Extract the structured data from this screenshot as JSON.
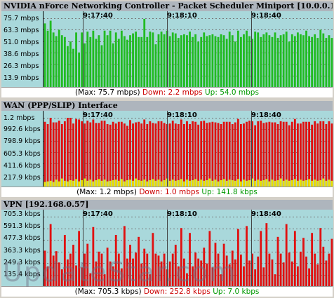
{
  "watermark": "UpdateStar.com",
  "colors": {
    "plot_bg": "#a9d8db",
    "download": "#e01010",
    "download_alt": "#22bb22",
    "upload": "#e8e000",
    "gridline": "#777777",
    "title_bg": "#aeb5bd"
  },
  "panels": [
    {
      "title": "NVIDIA nForce Networking Controller - Packet Scheduler Miniport [10.0.0.10]",
      "y_ticks": [
        "75.7 mbps",
        "63.3 mbps",
        "51.0 mbps",
        "38.6 mbps",
        "26.3 mbps",
        "13.9 mbps"
      ],
      "times": [
        "9:17:40",
        "9:18:10",
        "9:18:40"
      ],
      "status": {
        "max": "(Max: 75.7 mbps)",
        "down": "Down: 2.2 mbps",
        "up": "Up: 54.0 mbps"
      }
    },
    {
      "title": "WAN (PPP/SLIP) Interface",
      "y_ticks": [
        "1.2 mbps",
        "992.6 kbps",
        "798.9 kbps",
        "605.3 kbps",
        "411.6 kbps",
        "217.9 kbps"
      ],
      "times": [
        "9:17:40",
        "9:18:10",
        "9:18:40"
      ],
      "status": {
        "max": "(Max: 1.2 mbps)",
        "down": "Down: 1.0 mbps",
        "up": "Up: 141.8 kbps"
      }
    },
    {
      "title": "VPN [192.168.0.57]",
      "y_ticks": [
        "705.3 kbps",
        "591.3 kbps",
        "477.3 kbps",
        "363.3 kbps",
        "249.3 kbps",
        "135.4 kbps"
      ],
      "times": [
        "9:17:40",
        "9:18:10",
        "9:18:40"
      ],
      "status": {
        "max": "(Max: 705.3 kbps)",
        "down": "Down: 252.8 kbps",
        "up": "Up: 7.0 kbps"
      }
    }
  ],
  "chart_data": [
    {
      "type": "bar",
      "title": "NVIDIA nForce Networking Controller - Packet Scheduler Miniport [10.0.0.10]",
      "ylim": [
        0,
        75.7
      ],
      "unit": "mbps",
      "series": [
        {
          "values": [
            70,
            62,
            73,
            60,
            56,
            63,
            57,
            55,
            45,
            50,
            42,
            60,
            38,
            60,
            48,
            61,
            55,
            62,
            53,
            57,
            46,
            62,
            57,
            62,
            48,
            60,
            53,
            62,
            56,
            52,
            57,
            59,
            61,
            55,
            55,
            75,
            55,
            61,
            60,
            47,
            58,
            61,
            58,
            62,
            56,
            60,
            59,
            54,
            57,
            58,
            57,
            61,
            55,
            58,
            50,
            55,
            60,
            56,
            57,
            58,
            56,
            55,
            58,
            57,
            53,
            61,
            57,
            50,
            62,
            55,
            58,
            62,
            56,
            53,
            61,
            60,
            55,
            58,
            60,
            57,
            55,
            60,
            54,
            57,
            58,
            61,
            50,
            58,
            56,
            60,
            58,
            57,
            62,
            56,
            55,
            58,
            54,
            63,
            59,
            54,
            57,
            54
          ]
        }
      ]
    },
    {
      "type": "bar",
      "title": "WAN (PPP/SLIP) Interface",
      "ylim": [
        0,
        1.2
      ],
      "unit": "mbps",
      "series": [
        {
          "name": "Down",
          "values": [
            1.05,
            1.0,
            1.12,
            1.04,
            1.0,
            1.06,
            0.95,
            1.04,
            1.12,
            1.15,
            1.0,
            1.05,
            1.08,
            1.03,
            0.96,
            1.05,
            1.0,
            1.08,
            1.0,
            0.98,
            1.05,
            1.03,
            1.0,
            0.98,
            1.02,
            0.98,
            1.03,
            1.0,
            1.01,
            0.95,
            1.04,
            1.0,
            0.98,
            1.02,
            1.0,
            1.05,
            1.0,
            1.03,
            0.98,
            1.0,
            1.02,
            1.05,
            1.0,
            0.95,
            1.0,
            1.03,
            1.0,
            0.98,
            1.04,
            1.0,
            1.02,
            0.99,
            1.03,
            1.0,
            0.98,
            1.02,
            1.05,
            1.0,
            0.98,
            1.03,
            1.0,
            1.02,
            0.98,
            1.0,
            1.03,
            1.01,
            0.98,
            1.02,
            1.05,
            1.0,
            0.98,
            1.03,
            1.04,
            1.0,
            0.97,
            1.02,
            1.05,
            1.0,
            0.99,
            1.04,
            1.0,
            1.02,
            0.98,
            1.0,
            1.03,
            1.01,
            0.97,
            1.02,
            1.05,
            1.0,
            0.98,
            1.03,
            1.02,
            1.0,
            0.98,
            1.02,
            1.0,
            1.03,
            1.0,
            0.99,
            1.02,
            1.0
          ]
        },
        {
          "name": "Up",
          "values": [
            0.08,
            0.09,
            0.1,
            0.08,
            0.12,
            0.09,
            0.14,
            0.1,
            0.09,
            0.11,
            0.1,
            0.13,
            0.09,
            0.11,
            0.14,
            0.1,
            0.12,
            0.09,
            0.11,
            0.13,
            0.1,
            0.12,
            0.09,
            0.1,
            0.11,
            0.12,
            0.1,
            0.13,
            0.09,
            0.11,
            0.12,
            0.1,
            0.14,
            0.11,
            0.1,
            0.12,
            0.09,
            0.11,
            0.13,
            0.1,
            0.12,
            0.09,
            0.11,
            0.14,
            0.1,
            0.12,
            0.1,
            0.11,
            0.13,
            0.09,
            0.12,
            0.1,
            0.11,
            0.13,
            0.1,
            0.12,
            0.1,
            0.11,
            0.14,
            0.1,
            0.12,
            0.09,
            0.11,
            0.13,
            0.1,
            0.12,
            0.11,
            0.1,
            0.13,
            0.09,
            0.12,
            0.1,
            0.11,
            0.14,
            0.1,
            0.12,
            0.1,
            0.11,
            0.13,
            0.09,
            0.12,
            0.1,
            0.11,
            0.14,
            0.1,
            0.12,
            0.1,
            0.11,
            0.13,
            0.1,
            0.12,
            0.1,
            0.11,
            0.13,
            0.1,
            0.12,
            0.1,
            0.11,
            0.14,
            0.1,
            0.12,
            0.1
          ]
        }
      ]
    },
    {
      "type": "bar",
      "title": "VPN [192.168.0.57]",
      "ylim": [
        0,
        705.3
      ],
      "unit": "kbps",
      "series": [
        {
          "name": "Down",
          "values": [
            360,
            200,
            630,
            310,
            355,
            240,
            170,
            520,
            270,
            330,
            420,
            210,
            560,
            190,
            330,
            430,
            130,
            600,
            250,
            350,
            330,
            120,
            390,
            250,
            200,
            520,
            330,
            180,
            610,
            280,
            420,
            280,
            340,
            500,
            230,
            380,
            330,
            120,
            540,
            330,
            310,
            250,
            330,
            170,
            250,
            330,
            420,
            200,
            590,
            280,
            130,
            540,
            200,
            340,
            280,
            260,
            390,
            230,
            560,
            190,
            440,
            330,
            120,
            430,
            310,
            220,
            360,
            270,
            580,
            320,
            200,
            610,
            260,
            330,
            170,
            300,
            560,
            190,
            640,
            330,
            270,
            120,
            500,
            330,
            240,
            630,
            340,
            250,
            560,
            200,
            350,
            490,
            300,
            180,
            540,
            330,
            220,
            590,
            400,
            260,
            330,
            480
          ]
        },
        {
          "name": "Up",
          "values": [
            7,
            7,
            7,
            7,
            7,
            7,
            7,
            7,
            7,
            7,
            7,
            7,
            7,
            7,
            7,
            7,
            7,
            7,
            7,
            7,
            7,
            7,
            7,
            7,
            7,
            7,
            7,
            7,
            7,
            7,
            7,
            7,
            7,
            7,
            7,
            7,
            7,
            7,
            7,
            7,
            7,
            7,
            7,
            7,
            7,
            7,
            7,
            7,
            7,
            7,
            7,
            7,
            7,
            7,
            7,
            7,
            7,
            7,
            7,
            7,
            7,
            7,
            7,
            7,
            7,
            7,
            7,
            7,
            7,
            7,
            7,
            7,
            7,
            7,
            7,
            7,
            7,
            7,
            7,
            7,
            7,
            7,
            7,
            7,
            7,
            7,
            7,
            7,
            7,
            7,
            7,
            7,
            7,
            7,
            7,
            7,
            7,
            7,
            7,
            7,
            7,
            7
          ]
        }
      ]
    }
  ]
}
